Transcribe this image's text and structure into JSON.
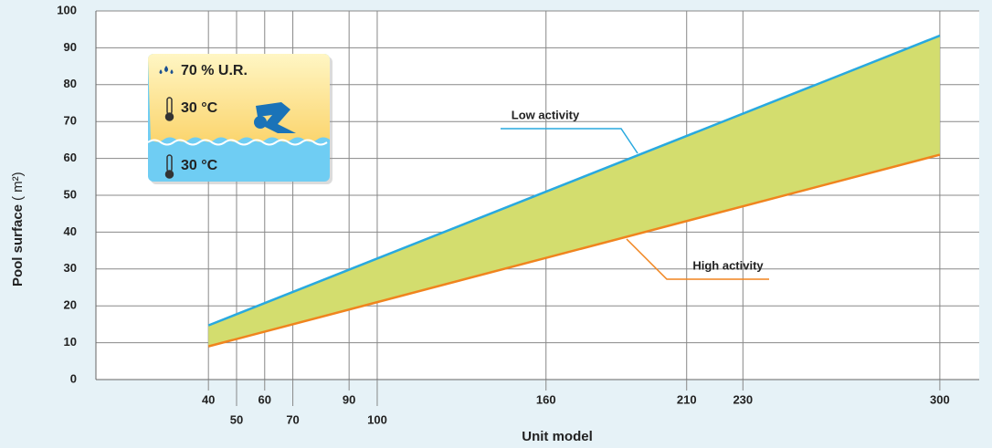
{
  "chart_data": {
    "type": "line",
    "x_label": "Unit model",
    "y_label": "Pool surface",
    "y_label_unit": "( m²)",
    "x": [
      40,
      300
    ],
    "series": [
      {
        "name": "Low activity",
        "color": "#29a9df",
        "values": [
          14.7,
          93.3
        ]
      },
      {
        "name": "High activity",
        "color": "#f0841e",
        "values": [
          9,
          61
        ]
      }
    ],
    "fill_between_color": "#d3dd6e",
    "xlim": [
      0,
      314
    ],
    "ylim": [
      0,
      100
    ],
    "xticks": [
      40,
      50,
      60,
      70,
      90,
      100,
      160,
      210,
      230,
      300
    ],
    "yticks": [
      0,
      10,
      20,
      30,
      40,
      50,
      60,
      70,
      80,
      90,
      100
    ],
    "grid": true,
    "inset_labels": [
      "70 % U.R.",
      "30 °C",
      "30 °C"
    ]
  }
}
